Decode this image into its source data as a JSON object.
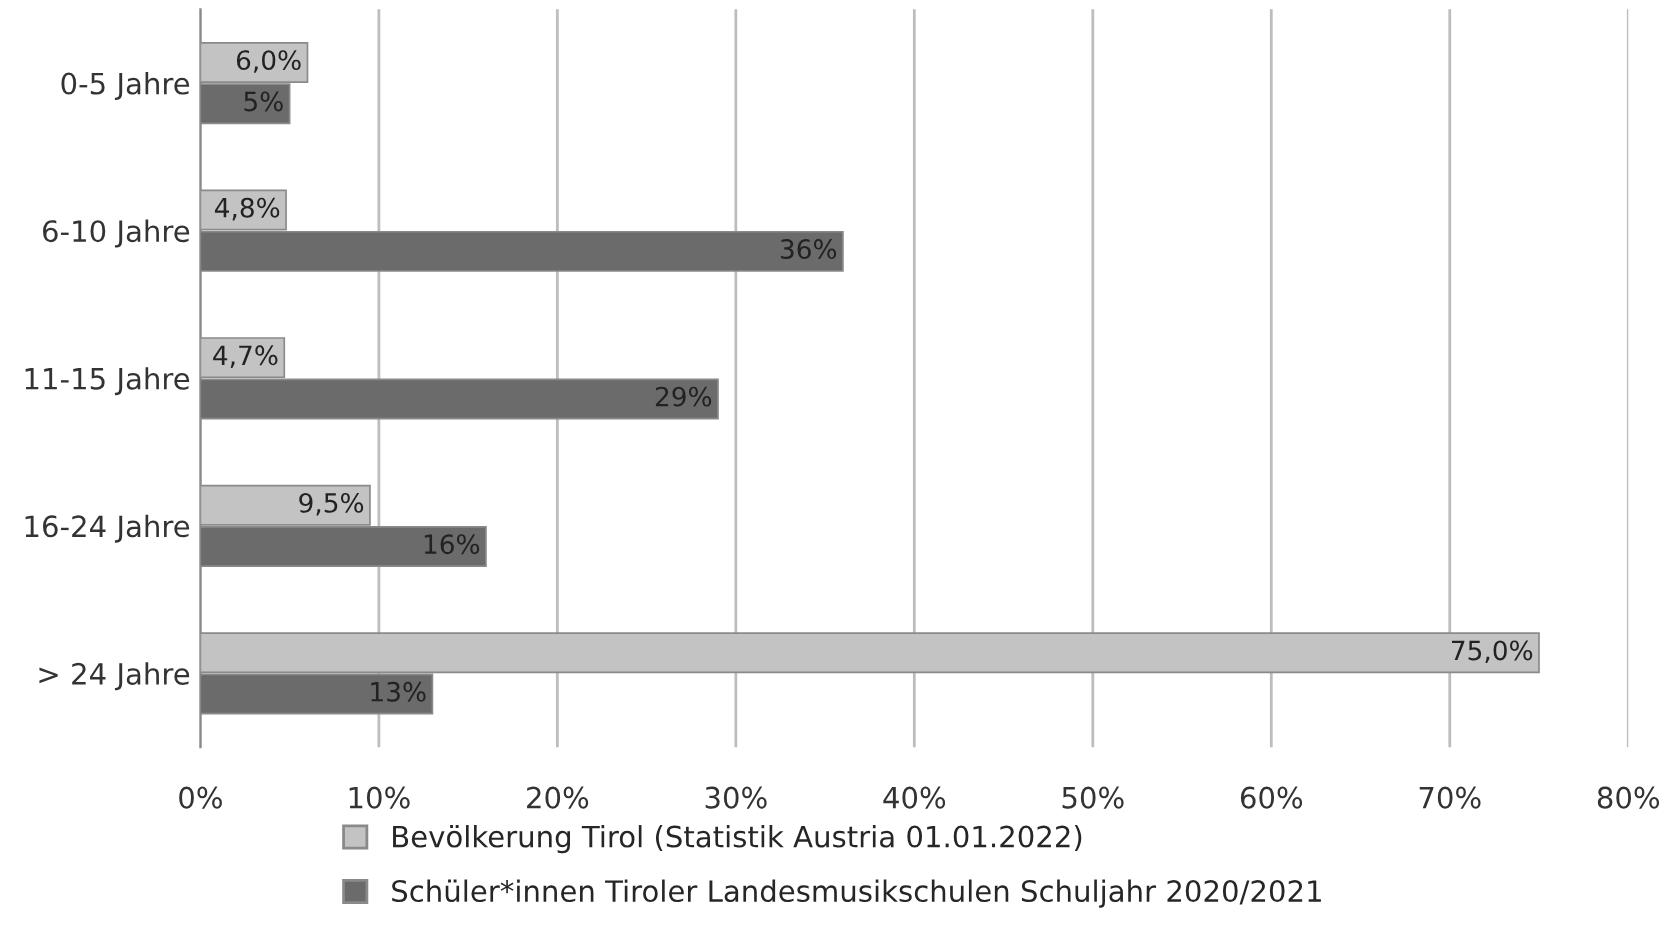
{
  "chart_data": {
    "type": "bar",
    "orientation": "horizontal",
    "categories": [
      "0-5 Jahre",
      "6-10 Jahre",
      "11-15 Jahre",
      "16-24 Jahre",
      "> 24 Jahre"
    ],
    "series": [
      {
        "name": "Bevölkerung Tirol (Statistik Austria 01.01.2022)",
        "color": "#c3c3c3",
        "values": [
          6.0,
          4.8,
          4.7,
          9.5,
          75.0
        ],
        "value_labels": [
          "6,0%",
          "4,8%",
          "4,7%",
          "9,5%",
          "75,0%"
        ]
      },
      {
        "name": "Schüler*innen Tiroler Landesmusikschulen Schuljahr 2020/2021",
        "color": "#6b6b6b",
        "values": [
          5,
          36,
          29,
          16,
          13
        ],
        "value_labels": [
          "5%",
          "36%",
          "29%",
          "16%",
          "13%"
        ]
      }
    ],
    "xlim": [
      0,
      80
    ],
    "xticks": [
      {
        "value": 0,
        "label": "0%"
      },
      {
        "value": 10,
        "label": "10%"
      },
      {
        "value": 20,
        "label": "20%"
      },
      {
        "value": 30,
        "label": "30%"
      },
      {
        "value": 40,
        "label": "40%"
      },
      {
        "value": 50,
        "label": "50%"
      },
      {
        "value": 60,
        "label": "60%"
      },
      {
        "value": 70,
        "label": "70%"
      },
      {
        "value": 80,
        "label": "80%"
      }
    ],
    "grid": "x",
    "legend": "bottom"
  }
}
